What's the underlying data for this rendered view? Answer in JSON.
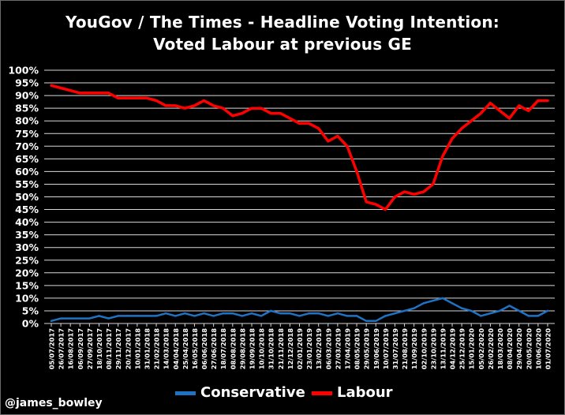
{
  "title": {
    "line1": "YouGov / The Times  - Headline Voting Intention:",
    "line2": "Voted Labour at previous GE"
  },
  "credit": "@james_bowley",
  "colors": {
    "background": "#000000",
    "gridline": "#d9d9d9",
    "conservative": "#1f73c4",
    "labour": "#ff0000"
  },
  "chart_data": {
    "type": "line",
    "title": "YouGov / The Times  - Headline Voting Intention: Voted Labour at previous GE",
    "xlabel": "",
    "ylabel": "",
    "ylim": [
      0,
      100
    ],
    "yticks": [
      "0%",
      "5%",
      "10%",
      "15%",
      "20%",
      "25%",
      "30%",
      "35%",
      "40%",
      "45%",
      "50%",
      "55%",
      "60%",
      "65%",
      "70%",
      "75%",
      "80%",
      "85%",
      "90%",
      "95%",
      "100%"
    ],
    "grid": true,
    "legend": "bottom",
    "x_ticks": [
      "05/07/2017",
      "26/07/2017",
      "16/08/2017",
      "06/09/2017",
      "27/09/2017",
      "18/10/2017",
      "08/11/2017",
      "29/11/2017",
      "20/12/2017",
      "10/01/2018",
      "31/01/2018",
      "21/02/2018",
      "14/03/2018",
      "04/04/2018",
      "25/04/2018",
      "16/05/2018",
      "06/06/2018",
      "27/06/2018",
      "18/07/2018",
      "08/08/2018",
      "29/08/2018",
      "19/09/2018",
      "10/10/2018",
      "31/10/2018",
      "21/11/2018",
      "12/12/2018",
      "02/01/2019",
      "23/01/2019",
      "13/02/2019",
      "06/03/2019",
      "27/03/2019",
      "17/04/2019",
      "08/05/2019",
      "29/05/2019",
      "19/06/2019",
      "10/07/2019",
      "31/07/2019",
      "21/08/2019",
      "11/09/2019",
      "02/10/2019",
      "23/10/2019",
      "13/11/2019",
      "04/12/2019",
      "25/12/2019",
      "15/01/2020",
      "05/02/2020",
      "26/02/2020",
      "18/03/2020",
      "08/04/2020",
      "29/04/2020",
      "20/05/2020",
      "10/06/2020",
      "01/07/2020"
    ],
    "x": [
      "05/07/2017",
      "26/07/2017",
      "16/08/2017",
      "06/09/2017",
      "27/09/2017",
      "18/10/2017",
      "08/11/2017",
      "29/11/2017",
      "20/12/2017",
      "10/01/2018",
      "31/01/2018",
      "21/02/2018",
      "14/03/2018",
      "04/04/2018",
      "25/04/2018",
      "16/05/2018",
      "06/06/2018",
      "27/06/2018",
      "18/07/2018",
      "08/08/2018",
      "29/08/2018",
      "19/09/2018",
      "10/10/2018",
      "31/10/2018",
      "21/11/2018",
      "12/12/2018",
      "02/01/2019",
      "23/01/2019",
      "13/02/2019",
      "06/03/2019",
      "27/03/2019",
      "17/04/2019",
      "08/05/2019",
      "29/05/2019",
      "19/06/2019",
      "10/07/2019",
      "31/07/2019",
      "21/08/2019",
      "11/09/2019",
      "02/10/2019",
      "23/10/2019",
      "13/11/2019",
      "04/12/2019",
      "25/12/2019",
      "15/01/2020",
      "05/02/2020",
      "26/02/2020",
      "18/03/2020",
      "08/04/2020",
      "29/04/2020",
      "20/05/2020",
      "10/06/2020",
      "01/07/2020"
    ],
    "series": [
      {
        "name": "Conservative",
        "color": "#1f73c4",
        "values": [
          1,
          2,
          2,
          2,
          2,
          3,
          2,
          3,
          3,
          3,
          3,
          3,
          4,
          3,
          4,
          3,
          4,
          3,
          4,
          4,
          3,
          4,
          3,
          5,
          4,
          4,
          3,
          4,
          4,
          3,
          4,
          3,
          3,
          1,
          1,
          3,
          4,
          5,
          6,
          8,
          9,
          10,
          8,
          6,
          5,
          3,
          4,
          5,
          7,
          5,
          3,
          3,
          5
        ]
      },
      {
        "name": "Labour",
        "color": "#ff0000",
        "values": [
          94,
          93,
          92,
          91,
          91,
          91,
          91,
          89,
          89,
          89,
          89,
          88,
          86,
          86,
          85,
          86,
          88,
          86,
          85,
          82,
          83,
          85,
          85,
          83,
          83,
          81,
          79,
          79,
          77,
          72,
          74,
          70,
          60,
          48,
          47,
          45,
          50,
          52,
          51,
          52,
          55,
          66,
          73,
          77,
          80,
          83,
          87,
          84,
          81,
          86,
          84,
          88,
          88
        ]
      }
    ]
  },
  "legend": {
    "items": [
      {
        "label": "Conservative",
        "color": "#1f73c4"
      },
      {
        "label": "Labour",
        "color": "#ff0000"
      }
    ]
  }
}
